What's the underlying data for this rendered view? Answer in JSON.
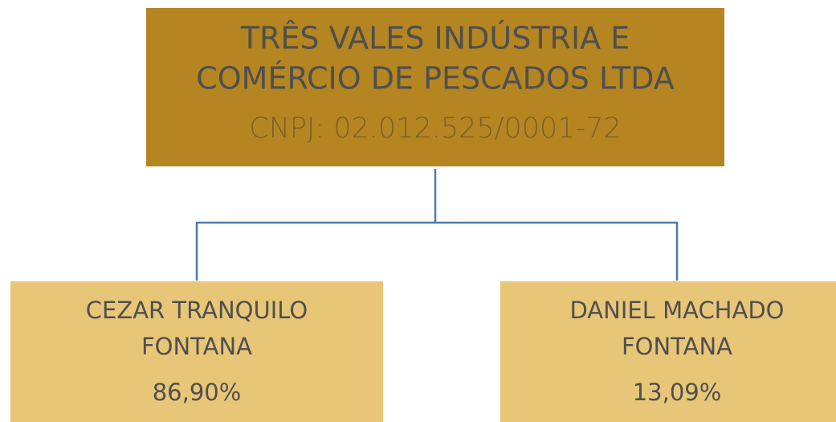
{
  "root": {
    "title_lines": [
      "TRÊS VALES INDÚSTRIA E",
      "COMÉRCIO DE PESCADOS LTDA"
    ],
    "cnpj": "CNPJ: 02.012.525/0001-72"
  },
  "nodes": [
    {
      "name_lines": [
        "CEZAR TRANQUILO",
        "FONTANA"
      ],
      "share": "86,90%"
    },
    {
      "name_lines": [
        "DANIEL MACHADO",
        "FONTANA"
      ],
      "share": "13,09%"
    }
  ]
}
